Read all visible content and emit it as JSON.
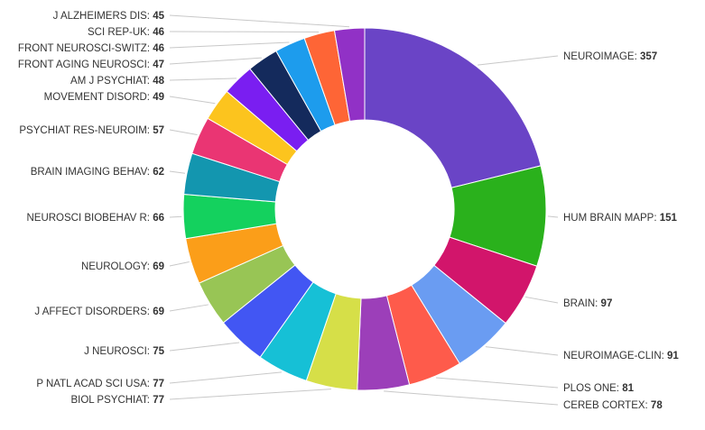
{
  "chart_data": {
    "type": "pie",
    "variant": "donut",
    "start": "top",
    "direction": "clockwise",
    "slices": [
      {
        "label": "NEUROIMAGE",
        "value": 357,
        "color": "#6a44c6"
      },
      {
        "label": "HUM BRAIN MAPP",
        "value": 151,
        "color": "#2ab11c"
      },
      {
        "label": "BRAIN",
        "value": 97,
        "color": "#d2156b"
      },
      {
        "label": "NEUROIMAGE-CLIN",
        "value": 91,
        "color": "#6a9cf2"
      },
      {
        "label": "PLOS ONE",
        "value": 81,
        "color": "#fe5b4b"
      },
      {
        "label": "CEREB CORTEX",
        "value": 78,
        "color": "#9c3fb9"
      },
      {
        "label": "BIOL PSYCHIAT",
        "value": 77,
        "color": "#d6df48"
      },
      {
        "label": "P NATL ACAD SCI USA",
        "value": 77,
        "color": "#16c0d6"
      },
      {
        "label": "J NEUROSCI",
        "value": 75,
        "color": "#4256f3"
      },
      {
        "label": "J AFFECT DISORDERS",
        "value": 69,
        "color": "#98c555"
      },
      {
        "label": "NEUROLOGY",
        "value": 69,
        "color": "#fb9e19"
      },
      {
        "label": "NEUROSCI BIOBEHAV R",
        "value": 66,
        "color": "#14d15e"
      },
      {
        "label": "BRAIN IMAGING BEHAV",
        "value": 62,
        "color": "#1396af"
      },
      {
        "label": "PSYCHIAT RES-NEUROIM",
        "value": 57,
        "color": "#ea3573"
      },
      {
        "label": "MOVEMENT DISORD",
        "value": 49,
        "color": "#fcc41e"
      },
      {
        "label": "AM J PSYCHIAT",
        "value": 48,
        "color": "#7a1ef1"
      },
      {
        "label": "FRONT AGING NEUROSCI",
        "value": 47,
        "color": "#142a5c"
      },
      {
        "label": "FRONT NEUROSCI-SWITZ",
        "value": 46,
        "color": "#1d9ced"
      },
      {
        "label": "SCI REP-UK",
        "value": 46,
        "color": "#fe6536"
      },
      {
        "label": "J ALZHEIMERS DIS",
        "value": 45,
        "color": "#9131c6"
      }
    ]
  }
}
